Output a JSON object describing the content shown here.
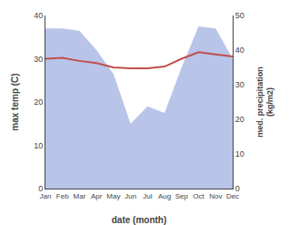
{
  "chart_data": {
    "type": "line",
    "categories": [
      "Jan",
      "Feb",
      "Mar",
      "Apr",
      "May",
      "Jun",
      "Jul",
      "Aug",
      "Sep",
      "Oct",
      "Nov",
      "Dec"
    ],
    "xlabel": "date (month)",
    "ylabel": "max temp (C)",
    "y2label": "med. precipitation\n(kg/m2)",
    "ylim": [
      0,
      40
    ],
    "yticks": [
      0,
      10,
      20,
      30,
      40
    ],
    "y2lim": [
      0,
      50
    ],
    "y2ticks": [
      0,
      10,
      20,
      30,
      40,
      50
    ],
    "grid": false,
    "series": [
      {
        "type": "area",
        "color": "#b8c4e8",
        "values": [
          37.0,
          37.0,
          36.5,
          32.0,
          26.5,
          15.0,
          19.0,
          17.5,
          28.0,
          37.5,
          37.0,
          30.0
        ]
      },
      {
        "type": "line",
        "color": "#c0504d",
        "values": [
          30.0,
          30.2,
          29.5,
          29.0,
          28.0,
          27.8,
          27.8,
          28.2,
          30.0,
          31.5,
          31.0,
          30.5
        ]
      }
    ]
  }
}
